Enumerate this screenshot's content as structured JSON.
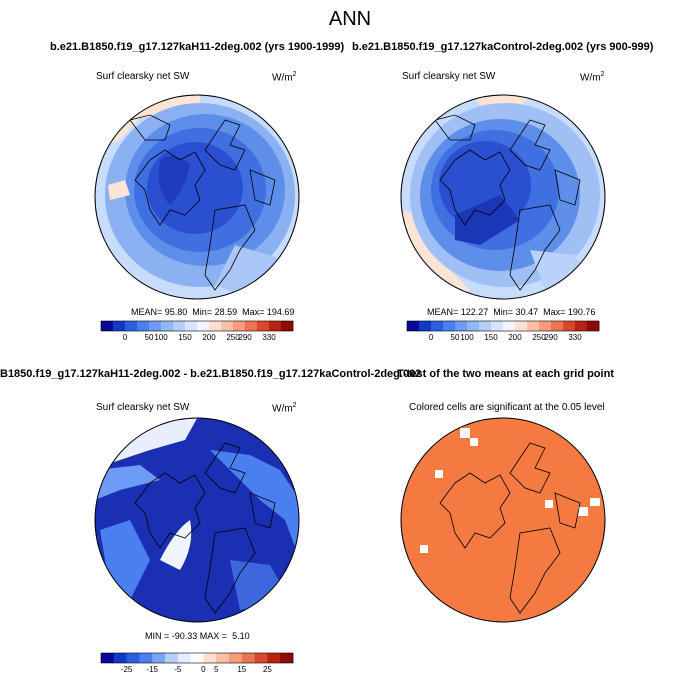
{
  "figure": {
    "main_title": "ANN",
    "case_title_left": "b.e21.B1850.f19_g17.127kaH11-2deg.002 (yrs 1900-1999)",
    "case_title_right": "b.e21.B1850.f19_g17.127kaControl-2deg.002 (yrs 900-999)",
    "diff_title": "B1850.f19_g17.127kaH11-2deg.002 - b.e21.B1850.f19_g17.127kaControl-2deg.002",
    "ttest_title": "T-test of the two means at each grid point",
    "variable": "Surf clearsky net SW",
    "units_base": "W/m",
    "units_exp": "2",
    "significance_note": "Colored cells are significant at the 0.05 level"
  },
  "chart_data": [
    {
      "type": "heatmap",
      "projection": "north-polar-stereographic",
      "title": "Surf clearsky net SW",
      "units": "W/m2",
      "case": "b.e21.B1850.f19_g17.127kaH11-2deg.002 (yrs 1900-1999)",
      "stats": {
        "mean": "95.80",
        "min": "28.59",
        "max": "194.69"
      },
      "colorbar": {
        "levels": [
          "0",
          "50",
          "100",
          "150",
          "200",
          "250",
          "290",
          "330"
        ],
        "colors": [
          "#08089b",
          "#1339c8",
          "#2b5fe0",
          "#4a7ff0",
          "#6d9bf5",
          "#90b7f8",
          "#b3cffa",
          "#d6e5fc",
          "#f4f4ff",
          "#fde0d2",
          "#fbbfa6",
          "#f69c7c",
          "#ec7452",
          "#d9482c",
          "#b82212",
          "#8e0a05"
        ]
      }
    },
    {
      "type": "heatmap",
      "projection": "north-polar-stereographic",
      "title": "Surf clearsky net SW",
      "units": "W/m2",
      "case": "b.e21.B1850.f19_g17.127kaControl-2deg.002 (yrs 900-999)",
      "stats": {
        "mean": "122.27",
        "min": "30.47",
        "max": "190.76"
      },
      "colorbar": {
        "levels": [
          "0",
          "50",
          "100",
          "150",
          "200",
          "250",
          "290",
          "330"
        ],
        "colors": [
          "#08089b",
          "#1339c8",
          "#2b5fe0",
          "#4a7ff0",
          "#6d9bf5",
          "#90b7f8",
          "#b3cffa",
          "#d6e5fc",
          "#f4f4ff",
          "#fde0d2",
          "#fbbfa6",
          "#f69c7c",
          "#ec7452",
          "#d9482c",
          "#b82212",
          "#8e0a05"
        ]
      }
    },
    {
      "type": "heatmap",
      "projection": "north-polar-stereographic",
      "title": "Surf clearsky net SW",
      "units": "W/m2",
      "case": "B1850.f19_g17.127kaH11-2deg.002 - b.e21.B1850.f19_g17.127kaControl-2deg.002",
      "stats": {
        "min": "-90.33",
        "max": "5.10"
      },
      "colorbar": {
        "levels": [
          "-25",
          "-15",
          "-5",
          "0",
          "5",
          "15",
          "25"
        ],
        "colors": [
          "#08089b",
          "#1339c8",
          "#2b5fe0",
          "#4a7ff0",
          "#7aa5f5",
          "#b3cffa",
          "#e4eefe",
          "#ffffff",
          "#fde0d2",
          "#fbbfa6",
          "#f69c7c",
          "#ec7452",
          "#d9482c",
          "#b82212",
          "#8e0a05"
        ]
      }
    },
    {
      "type": "heatmap",
      "projection": "north-polar-stereographic",
      "title": "Colored cells are significant at the 0.05 level",
      "case": "T-test of the two means at each grid point",
      "significant_color": "#f47a42"
    }
  ]
}
